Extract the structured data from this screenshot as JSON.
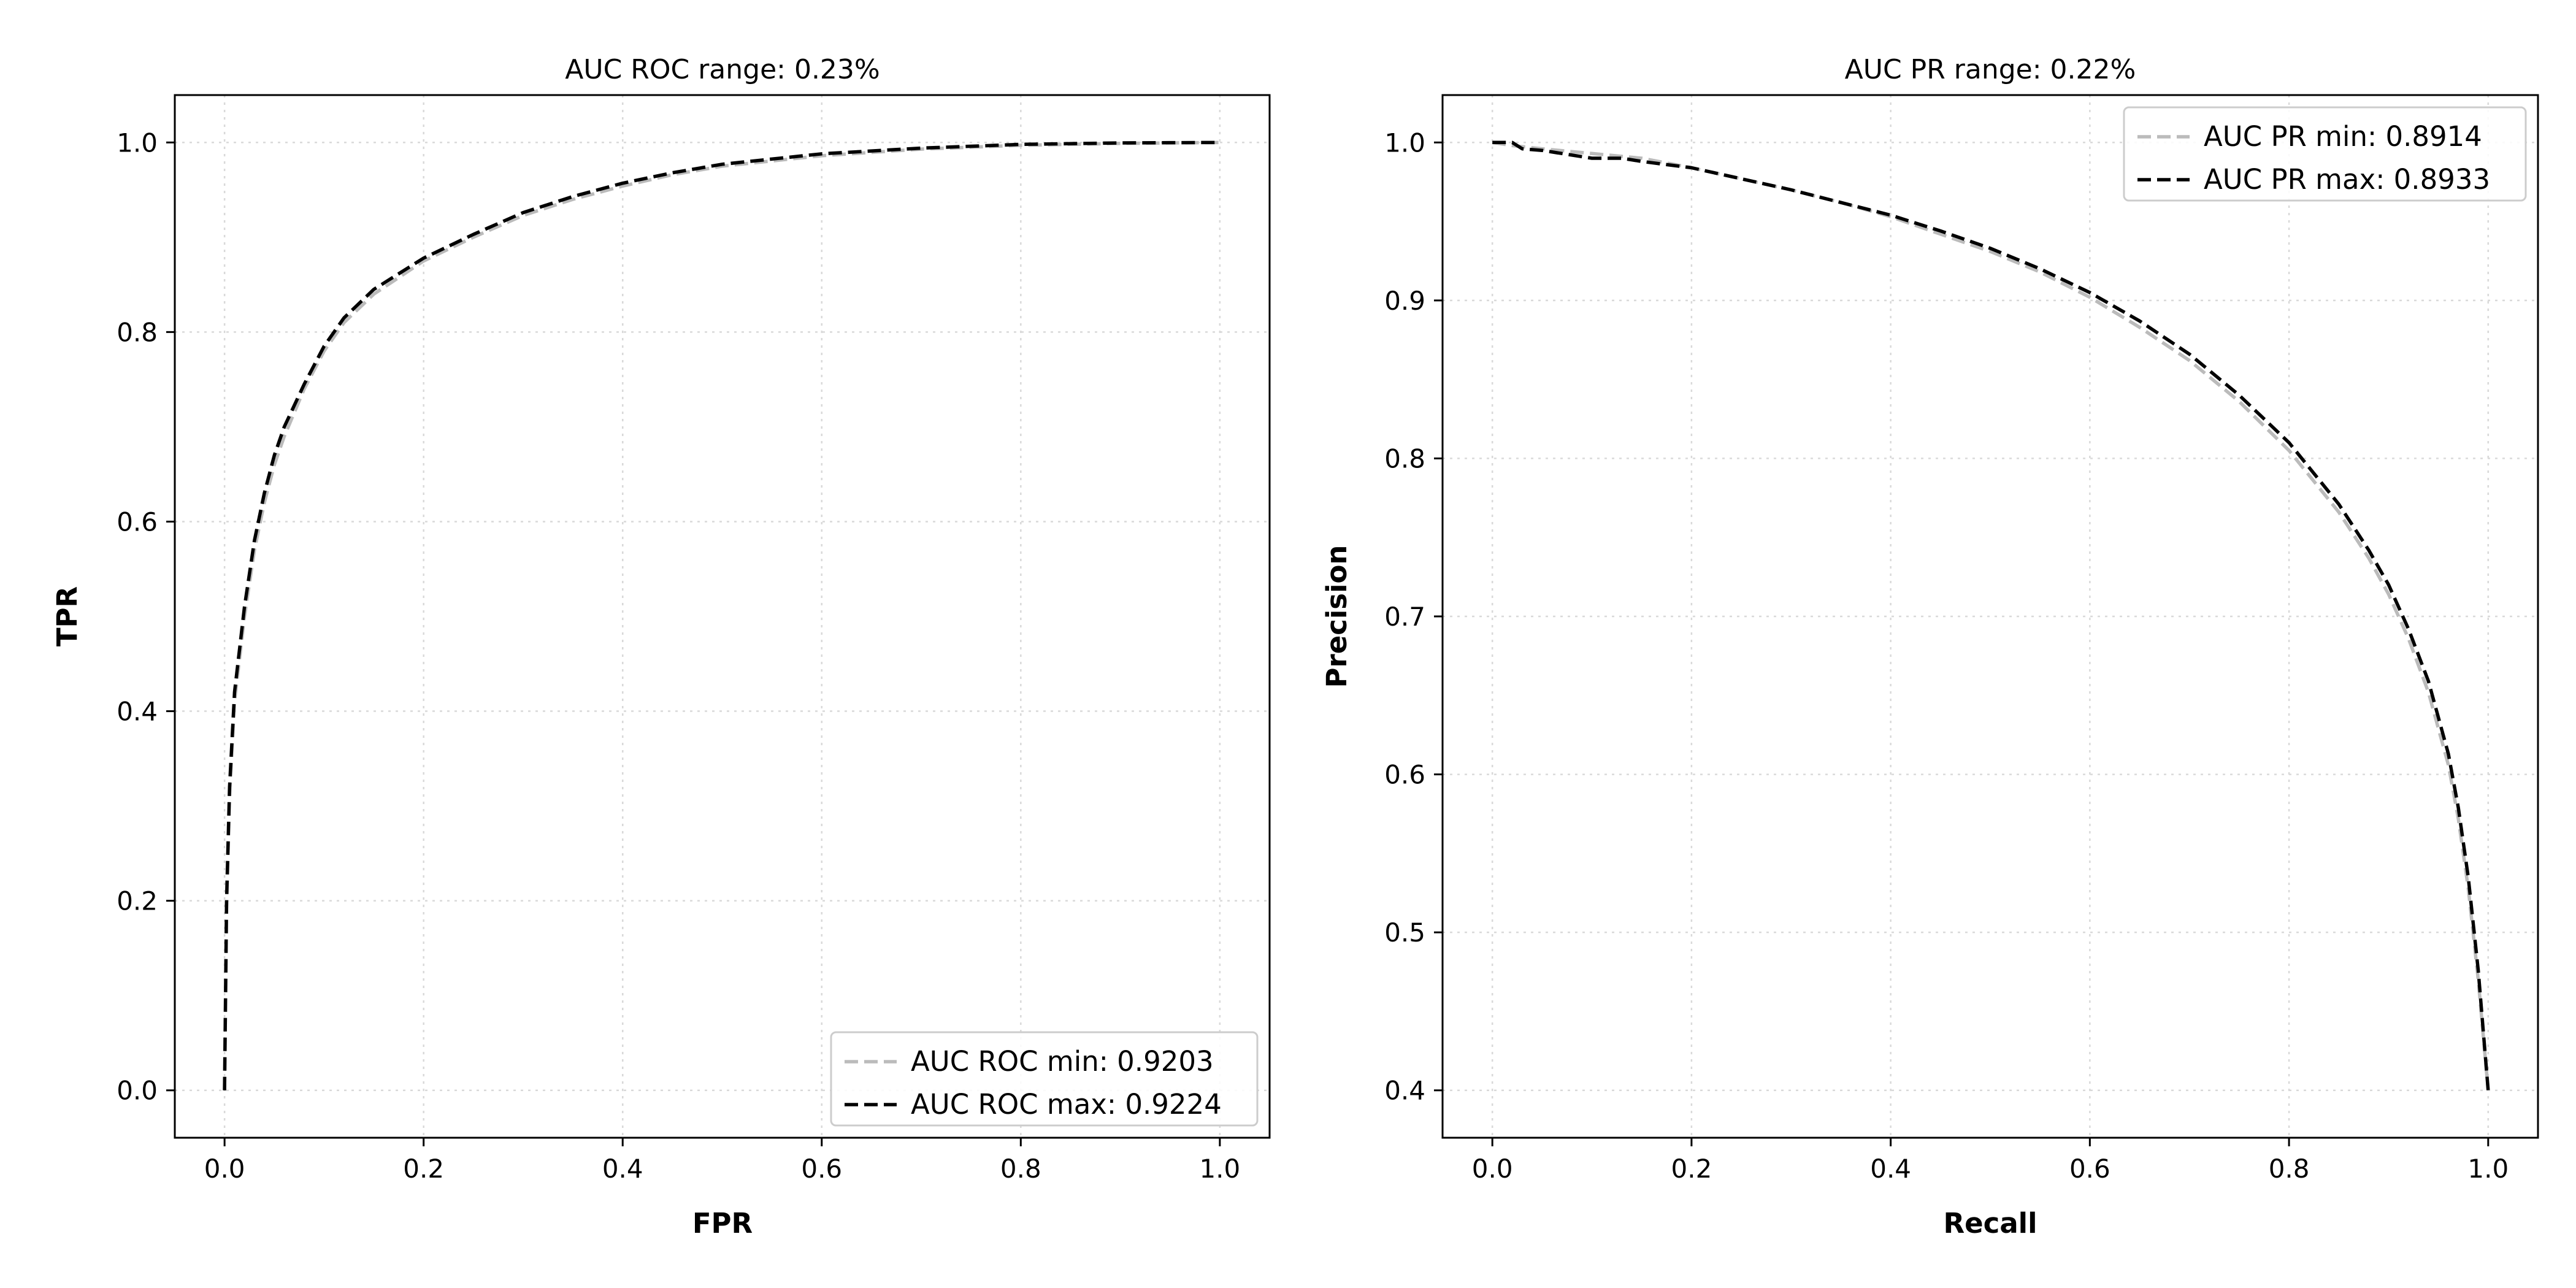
{
  "chart_data": [
    {
      "type": "line",
      "title": "AUC ROC range: 0.23%",
      "xlabel": "FPR",
      "ylabel": "TPR",
      "xlim": [
        -0.05,
        1.05
      ],
      "ylim": [
        -0.05,
        1.05
      ],
      "xticks": [
        0.0,
        0.2,
        0.4,
        0.6,
        0.8,
        1.0
      ],
      "yticks": [
        0.0,
        0.2,
        0.4,
        0.6,
        0.8,
        1.0
      ],
      "tick_format": 1,
      "grid": true,
      "legend_position": "bottom-right",
      "series": [
        {
          "name": "AUC ROC min: 0.9203",
          "color": "#bbbbbb",
          "x": [
            0.0,
            0.002,
            0.005,
            0.01,
            0.02,
            0.03,
            0.04,
            0.05,
            0.06,
            0.08,
            0.1,
            0.12,
            0.15,
            0.2,
            0.25,
            0.3,
            0.35,
            0.4,
            0.45,
            0.5,
            0.6,
            0.7,
            0.8,
            0.9,
            1.0
          ],
          "y": [
            0.0,
            0.19,
            0.31,
            0.41,
            0.5,
            0.57,
            0.62,
            0.66,
            0.69,
            0.74,
            0.78,
            0.81,
            0.84,
            0.875,
            0.9,
            0.923,
            0.94,
            0.954,
            0.966,
            0.975,
            0.986,
            0.993,
            0.997,
            0.999,
            1.0
          ]
        },
        {
          "name": "AUC ROC max: 0.9224",
          "color": "#000000",
          "x": [
            0.0,
            0.002,
            0.005,
            0.01,
            0.02,
            0.03,
            0.04,
            0.05,
            0.06,
            0.08,
            0.1,
            0.12,
            0.15,
            0.2,
            0.25,
            0.3,
            0.35,
            0.4,
            0.45,
            0.5,
            0.6,
            0.7,
            0.8,
            0.9,
            1.0
          ],
          "y": [
            0.0,
            0.2,
            0.32,
            0.42,
            0.51,
            0.58,
            0.63,
            0.67,
            0.7,
            0.745,
            0.785,
            0.815,
            0.845,
            0.878,
            0.903,
            0.926,
            0.943,
            0.957,
            0.968,
            0.977,
            0.988,
            0.994,
            0.998,
            0.9995,
            1.0
          ]
        }
      ]
    },
    {
      "type": "line",
      "title": "AUC PR range: 0.22%",
      "xlabel": "Recall",
      "ylabel": "Precision",
      "xlim": [
        -0.05,
        1.05
      ],
      "ylim": [
        0.37,
        1.03
      ],
      "xticks": [
        0.0,
        0.2,
        0.4,
        0.6,
        0.8,
        1.0
      ],
      "yticks": [
        0.4,
        0.5,
        0.6,
        0.7,
        0.8,
        0.9,
        1.0
      ],
      "tick_format": 1,
      "grid": true,
      "legend_position": "top-right",
      "series": [
        {
          "name": "AUC PR min: 0.8914",
          "color": "#bbbbbb",
          "x": [
            0.0,
            0.02,
            0.05,
            0.1,
            0.15,
            0.2,
            0.25,
            0.3,
            0.35,
            0.4,
            0.45,
            0.5,
            0.55,
            0.6,
            0.65,
            0.7,
            0.75,
            0.8,
            0.85,
            0.88,
            0.9,
            0.92,
            0.94,
            0.96,
            0.97,
            0.98,
            0.99,
            1.0
          ],
          "y": [
            1.0,
            0.998,
            0.996,
            0.993,
            0.99,
            0.984,
            0.977,
            0.97,
            0.962,
            0.953,
            0.942,
            0.931,
            0.918,
            0.902,
            0.883,
            0.862,
            0.836,
            0.805,
            0.766,
            0.737,
            0.714,
            0.686,
            0.652,
            0.606,
            0.572,
            0.528,
            0.47,
            0.4
          ]
        },
        {
          "name": "AUC PR max: 0.8933",
          "color": "#000000",
          "x": [
            0.0,
            0.02,
            0.03,
            0.05,
            0.08,
            0.1,
            0.13,
            0.15,
            0.2,
            0.25,
            0.3,
            0.35,
            0.4,
            0.45,
            0.5,
            0.55,
            0.6,
            0.65,
            0.7,
            0.75,
            0.8,
            0.85,
            0.88,
            0.9,
            0.92,
            0.94,
            0.96,
            0.97,
            0.98,
            0.99,
            1.0
          ],
          "y": [
            1.0,
            1.0,
            0.996,
            0.995,
            0.992,
            0.99,
            0.99,
            0.988,
            0.984,
            0.977,
            0.97,
            0.962,
            0.954,
            0.944,
            0.933,
            0.92,
            0.905,
            0.887,
            0.866,
            0.84,
            0.81,
            0.771,
            0.742,
            0.72,
            0.692,
            0.659,
            0.613,
            0.579,
            0.535,
            0.476,
            0.4
          ]
        }
      ]
    }
  ]
}
